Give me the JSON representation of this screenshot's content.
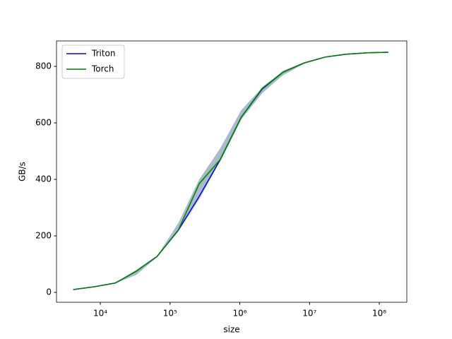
{
  "chart_data": {
    "type": "line",
    "xlabel": "size",
    "ylabel": "GB/s",
    "xscale": "log",
    "x": [
      4096,
      8192,
      16384,
      32768,
      65536,
      131072,
      262144,
      524288,
      1048576,
      2097152,
      4194304,
      8388608,
      16777216,
      33554432,
      67108864,
      134217728
    ],
    "series": [
      {
        "name": "Triton",
        "color": "#0000ff",
        "band_color": "#6a7fa8",
        "values": [
          10,
          20,
          33,
          75,
          128,
          220,
          340,
          470,
          620,
          720,
          780,
          812,
          833,
          843,
          848,
          850
        ],
        "lower": [
          10,
          20,
          32,
          62,
          125,
          215,
          330,
          465,
          612,
          705,
          770,
          810,
          832,
          842,
          847,
          849
        ],
        "upper": [
          11,
          21,
          34,
          78,
          130,
          245,
          400,
          510,
          645,
          725,
          785,
          815,
          835,
          845,
          849,
          852
        ]
      },
      {
        "name": "Torch",
        "color": "#008000",
        "band_color": "#8fc98f",
        "values": [
          10,
          20,
          33,
          75,
          128,
          220,
          385,
          470,
          620,
          722,
          780,
          812,
          833,
          843,
          848,
          850
        ],
        "lower": [
          10,
          20,
          32,
          70,
          126,
          218,
          375,
          462,
          612,
          715,
          768,
          810,
          832,
          842,
          847,
          849
        ],
        "upper": [
          11,
          21,
          34,
          80,
          130,
          225,
          395,
          480,
          625,
          728,
          782,
          815,
          835,
          845,
          849,
          852
        ]
      }
    ],
    "xlim": [
      2355,
      248000000
    ],
    "ylim": [
      -35,
      890
    ],
    "xticks": [
      {
        "value": 10000,
        "label": "10⁴"
      },
      {
        "value": 100000,
        "label": "10⁵"
      },
      {
        "value": 1000000,
        "label": "10⁶"
      },
      {
        "value": 10000000,
        "label": "10⁷"
      },
      {
        "value": 100000000,
        "label": "10⁸"
      }
    ],
    "yticks": [
      0,
      200,
      400,
      600,
      800
    ],
    "legend": "upper left",
    "grid": false
  }
}
